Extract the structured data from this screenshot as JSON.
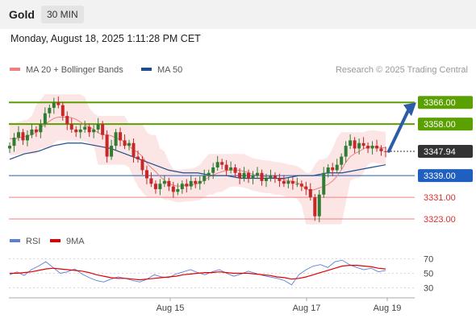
{
  "header": {
    "title": "Gold",
    "timeframe": "30 MIN"
  },
  "timestamp": "Monday, August 18, 2025 1:11:28 PM CET",
  "legend": [
    {
      "label": "MA 20 + Bollinger Bands",
      "color": "#f08080"
    },
    {
      "label": "MA 50",
      "color": "#1f4e8c"
    }
  ],
  "copyright": "Research © 2025 Trading Central",
  "rsi_legend": [
    {
      "label": "RSI",
      "color": "#5b7fd6"
    },
    {
      "label": "9MA",
      "color": "#e00000"
    }
  ],
  "colors": {
    "up": "#2e7d32",
    "down": "#c62828",
    "resistance": "#5aa000",
    "pivot": "#1f5fbf",
    "support": "#f08080",
    "arrow": "#2b5ca8",
    "band_fill": "#fbdcdc"
  },
  "chart_data": [
    {
      "type": "candlestick",
      "title": "Gold 30 MIN",
      "ylim": [
        3318,
        3372
      ],
      "x_tick_labels": [
        "Aug 15",
        "Aug 17",
        "Aug 19"
      ],
      "last_price": {
        "value": 3347.94,
        "label": "3347.94"
      },
      "levels": [
        {
          "value": 3366.0,
          "label": "3366.00",
          "kind": "resistance"
        },
        {
          "value": 3358.0,
          "label": "3358.00",
          "kind": "resistance"
        },
        {
          "value": 3339.0,
          "label": "3339.00",
          "kind": "pivot"
        },
        {
          "value": 3331.0,
          "label": "3331.00",
          "kind": "support"
        },
        {
          "value": 3323.0,
          "label": "3323.00",
          "kind": "support"
        }
      ],
      "close_series": [
        3350,
        3353,
        3355,
        3352,
        3354,
        3356,
        3355,
        3358,
        3362,
        3364,
        3366,
        3365,
        3361,
        3358,
        3356,
        3355,
        3356,
        3357,
        3355,
        3356,
        3358,
        3354,
        3346,
        3350,
        3355,
        3352,
        3350,
        3351,
        3346,
        3345,
        3341,
        3338,
        3336,
        3334,
        3336,
        3337,
        3335,
        3333,
        3334,
        3336,
        3335,
        3337,
        3336,
        3337,
        3339,
        3340,
        3342,
        3344,
        3343,
        3341,
        3342,
        3340,
        3338,
        3340,
        3338,
        3339,
        3340,
        3337,
        3338,
        3339,
        3338,
        3337,
        3336,
        3337,
        3336,
        3336,
        3335,
        3334,
        3331,
        3324,
        3332,
        3340,
        3342,
        3341,
        3343,
        3346,
        3350,
        3352,
        3349,
        3351,
        3350,
        3349,
        3350,
        3349,
        3348,
        3347.94
      ],
      "ma50_series": [
        3345,
        3347,
        3348,
        3350,
        3351,
        3351,
        3350,
        3349,
        3347,
        3345,
        3343,
        3341,
        3340,
        3340,
        3339,
        3339,
        3338,
        3338,
        3338,
        3338,
        3339,
        3339,
        3340,
        3340,
        3341,
        3342,
        3343
      ]
    },
    {
      "type": "line",
      "title": "RSI",
      "ylim": [
        20,
        80
      ],
      "y_tick_labels": [
        "70",
        "50",
        "30"
      ],
      "series": [
        {
          "name": "RSI",
          "values": [
            48,
            52,
            47,
            55,
            60,
            66,
            58,
            50,
            52,
            56,
            49,
            44,
            40,
            38,
            42,
            45,
            43,
            40,
            38,
            42,
            48,
            45,
            44,
            49,
            52,
            55,
            51,
            48,
            52,
            55,
            50,
            46,
            49,
            53,
            50,
            47,
            45,
            43,
            40,
            34,
            48,
            55,
            60,
            62,
            58,
            66,
            68,
            62,
            58,
            55,
            57,
            52,
            54
          ]
        },
        {
          "name": "9MA",
          "values": [
            50,
            50,
            51,
            52,
            54,
            56,
            57,
            56,
            55,
            54,
            53,
            51,
            48,
            46,
            44,
            43,
            43,
            42,
            41,
            42,
            43,
            44,
            45,
            46,
            48,
            49,
            50,
            51,
            51,
            52,
            51,
            50,
            50,
            50,
            49,
            48,
            47,
            45,
            44,
            42,
            43,
            45,
            48,
            51,
            54,
            57,
            60,
            61,
            61,
            60,
            59,
            57,
            56
          ]
        }
      ]
    }
  ]
}
